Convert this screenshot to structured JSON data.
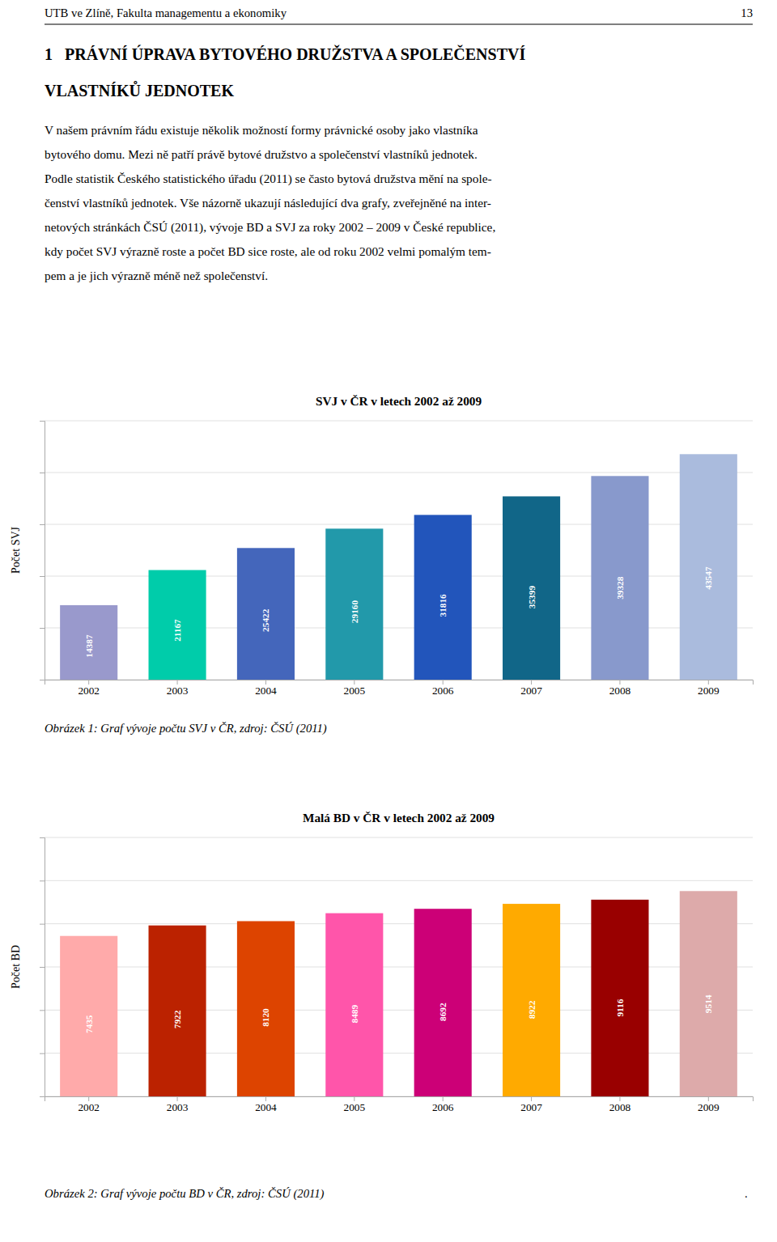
{
  "page_header": "UTB ve Zlíně, Fakulta managementu a ekonomiky",
  "page_number": "13",
  "chapter_title": [
    "1   PRÁVNÍ ÚPRAVA BYTOVÉHO DRUŽSTVA A SPOLEČENSTVÍ",
    "VLASTNÍKŮ JEDNOTEK"
  ],
  "body_text": [
    "V našem právním řádu existuje několik možností formy právnické osoby jako vlastníka",
    "bytového domu. Mezi ně patří právě bytové družstvo a společenství vlastníků jednotek.",
    "Podle statistik Českého statistického úřadu (2011) se často bytová družstva mění na spole-",
    "čenství vlastníků jednotek. Vše názorně ukazují následující dva grafy, zveřejněné na inter-",
    "netových stránkách ČSÚ (2011), vývoje BD a SVJ za roky 2002 – 2009 v České republice,",
    "kdy počet SVJ výrazně roste a počet BD sice roste, ale od roku 2002 velmi pomalým tem-",
    "pem a je jich výrazně méně než společenství."
  ],
  "captions": [
    "Obrázek 1: Graf vývoje počtu SVJ v ČR, zdroj: ČSÚ (2011)",
    "Obrázek 2: Graf vývoje počtu BD v ČR, zdroj: ČSÚ (2011)"
  ],
  "trailing_text": ".",
  "chart_data": [
    {
      "type": "bar",
      "title": "SVJ v ČR v letech 2002 až 2009",
      "y_label": "Počet SVJ",
      "categories": [
        "2002",
        "2003",
        "2004",
        "2005",
        "2006",
        "2007",
        "2008",
        "2009"
      ],
      "values": [
        14387,
        21167,
        25422,
        29160,
        31816,
        35399,
        39328,
        43547
      ],
      "colors": [
        "#9999cc",
        "#00ccaa",
        "#4466bb",
        "#2299aa",
        "#2255bb",
        "#116688",
        "#8899cc",
        "#aabbdd"
      ],
      "ylim": [
        0,
        50000
      ],
      "yticks": [
        0,
        10000,
        20000,
        30000,
        40000,
        50000
      ],
      "grid": true,
      "tick_labels": "x",
      "data_labels": true
    },
    {
      "type": "bar",
      "title": "Malá BD v ČR v letech 2002 až 2009",
      "y_label": "Počet BD",
      "categories": [
        "2002",
        "2003",
        "2004",
        "2005",
        "2006",
        "2007",
        "2008",
        "2009"
      ],
      "values": [
        7435,
        7922,
        8120,
        8489,
        8692,
        8922,
        9116,
        9514
      ],
      "colors": [
        "#ffaaaa",
        "#bb2200",
        "#dd4400",
        "#ff55aa",
        "#cc0077",
        "#ffaa00",
        "#990000",
        "#ddaaaa"
      ],
      "ylim": [
        0,
        12000
      ],
      "yticks": [
        0,
        2000,
        4000,
        6000,
        8000,
        10000,
        12000
      ],
      "grid": true,
      "tick_labels": "x",
      "data_labels": true
    }
  ]
}
